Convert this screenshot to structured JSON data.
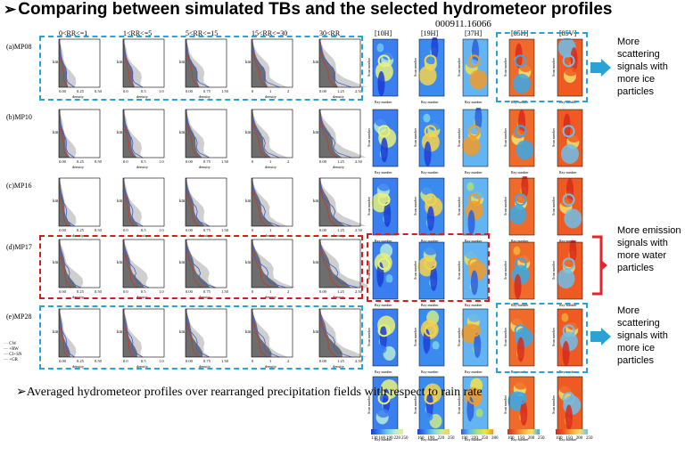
{
  "title": "Comparing between simulated TBs and the selected hydrometeor profiles",
  "subtitle": "000911.16066",
  "rr_columns": [
    "0<RR<=1",
    "1<RR<=5",
    "5<RR<=15",
    "15<RR<=30",
    "30<RR"
  ],
  "tb_columns": [
    "[10H]",
    "[19H]",
    "[37H]",
    "[85H]",
    "[85V]"
  ],
  "rows": [
    "(a)MP08",
    "(b)MP10",
    "(c)MP16",
    "(d)MP17",
    "(e)MP28"
  ],
  "xaxis_label": "density",
  "yaxis_label": "km",
  "xticks": [
    [
      "0.00",
      "0.25",
      "0.50"
    ],
    [
      "0.0",
      "0.5",
      "1.0"
    ],
    [
      "0.00",
      "0.75",
      "1.50"
    ],
    [
      "0",
      "1",
      "2"
    ],
    [
      "0.00",
      "1.25",
      "2.50"
    ]
  ],
  "map_xlabel": "Ray number",
  "map_ylabel": "Scan number",
  "legend_items": [
    "CW",
    "+RW",
    "CI+SN",
    "+GR"
  ],
  "annotations": {
    "scattering_top": "More scattering signals with more ice particles",
    "emission": "More emission signals with more water particles",
    "scattering_bottom": "More scattering signals with more ice particles"
  },
  "bottom_text": "Averaged hydrometeor profiles over rearranged precipitation fields with respect to rain rate",
  "colorbar_ticks": [
    [
      "130",
      "160",
      "190",
      "220",
      "250"
    ],
    [
      "160",
      "190",
      "220",
      "250"
    ],
    [
      "190",
      "220",
      "250",
      "280"
    ],
    [
      "100",
      "150",
      "200",
      "250"
    ],
    [
      "100",
      "150",
      "200",
      "250"
    ]
  ],
  "colors": {
    "blue_box": "#29a3d6",
    "red_box": "#d21e1e",
    "blue_arrow": "#29a3d6",
    "red_arrow": "#e8232a",
    "profile_gray": "#6e6e6e",
    "profile_light": "#cfcfcf",
    "line_red": "#c0392b",
    "line_blue": "#3d5bd6"
  }
}
